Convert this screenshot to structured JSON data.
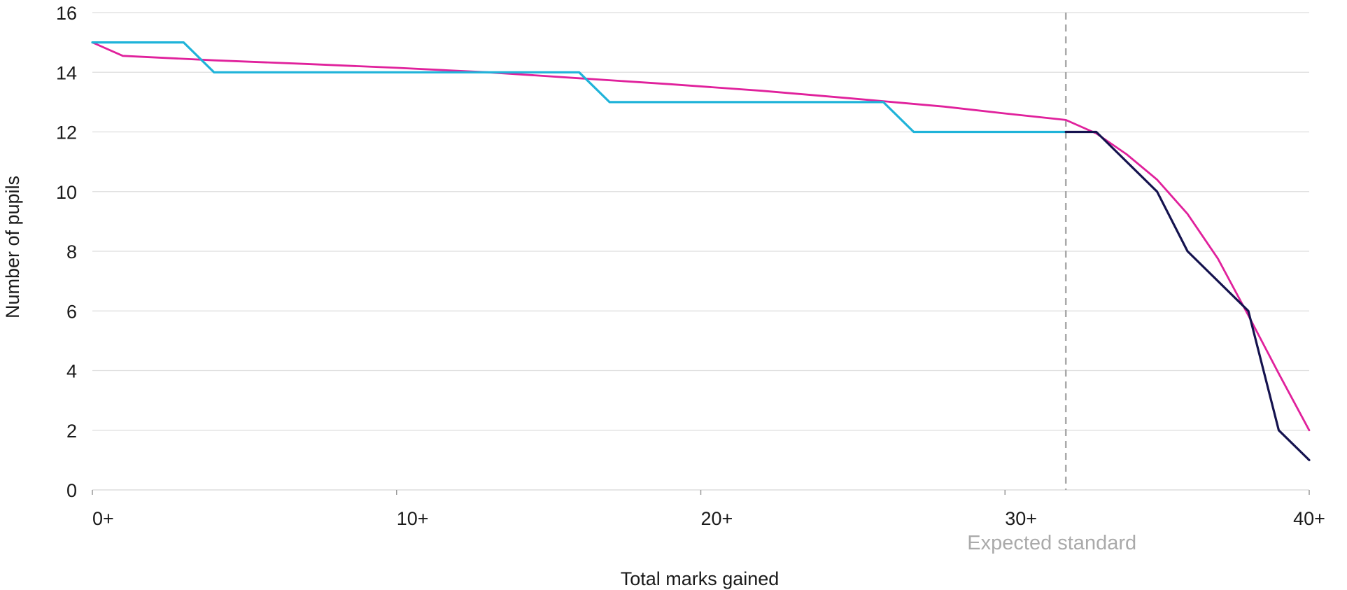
{
  "chart_data": {
    "type": "line",
    "xlabel": "Total marks gained",
    "ylabel": "Number of pupils",
    "xlim": [
      0,
      40
    ],
    "ylim": [
      0,
      16
    ],
    "grid": true,
    "x_ticks": [
      {
        "value": 0,
        "label": "0+"
      },
      {
        "value": 10,
        "label": "10+"
      },
      {
        "value": 20,
        "label": "20+"
      },
      {
        "value": 30,
        "label": "30+"
      },
      {
        "value": 40,
        "label": "40+"
      }
    ],
    "y_ticks": [
      0,
      2,
      4,
      6,
      8,
      10,
      12,
      14,
      16
    ],
    "annotations": [
      {
        "type": "vline",
        "x": 32,
        "style": "dashed",
        "label": "Expected standard"
      }
    ],
    "colors": {
      "magenta": "#e0219c",
      "cyan": "#1fb3d9",
      "navy": "#15134f",
      "grid": "#dddddd",
      "dashed": "#aaaaaa"
    },
    "series": [
      {
        "color": "#e0219c",
        "x": [
          0,
          1,
          4,
          7,
          10,
          13,
          16,
          19,
          22,
          25,
          28,
          30,
          32,
          33,
          34,
          35,
          36,
          37,
          38,
          39,
          40
        ],
        "y": [
          15,
          14.55,
          14.4,
          14.28,
          14.15,
          14.0,
          13.8,
          13.6,
          13.38,
          13.12,
          12.85,
          12.62,
          12.4,
          11.95,
          11.25,
          10.4,
          9.25,
          7.75,
          5.85,
          3.9,
          2.0
        ]
      },
      {
        "color": "#1fb3d9",
        "x": [
          0,
          3,
          4,
          16,
          17,
          26,
          27,
          32
        ],
        "y": [
          15,
          15,
          14,
          14,
          13,
          13,
          12,
          12
        ]
      },
      {
        "color": "#15134f",
        "x": [
          32,
          33,
          35,
          36,
          38,
          39,
          40
        ],
        "y": [
          12,
          12,
          10,
          8,
          6,
          2,
          1
        ]
      }
    ]
  }
}
